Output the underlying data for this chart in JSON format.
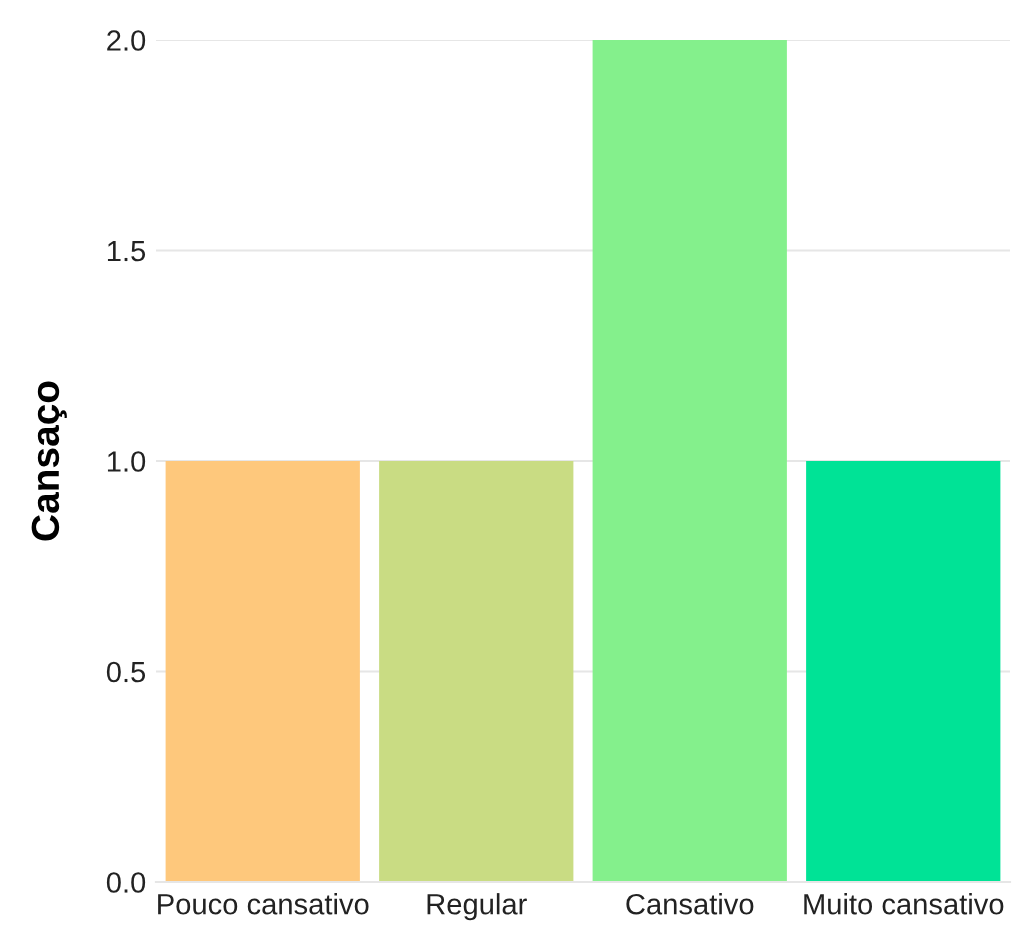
{
  "chart_data": {
    "type": "bar",
    "ylabel": "Cansaço",
    "categories": [
      "Pouco cansativo",
      "Regular",
      "Cansativo",
      "Muito cansativo"
    ],
    "values": [
      1,
      1,
      2,
      1
    ],
    "colors": [
      "#fec87c",
      "#c9dc83",
      "#84f08c",
      "#00e396"
    ],
    "ylim": [
      0,
      2
    ],
    "yticks": [
      {
        "value": 0,
        "label": "0.0"
      },
      {
        "value": 0.5,
        "label": "0.5"
      },
      {
        "value": 1,
        "label": "1.0"
      },
      {
        "value": 1.5,
        "label": "1.5"
      },
      {
        "value": 2,
        "label": "2.0"
      }
    ],
    "grid": "y",
    "legend": false
  }
}
